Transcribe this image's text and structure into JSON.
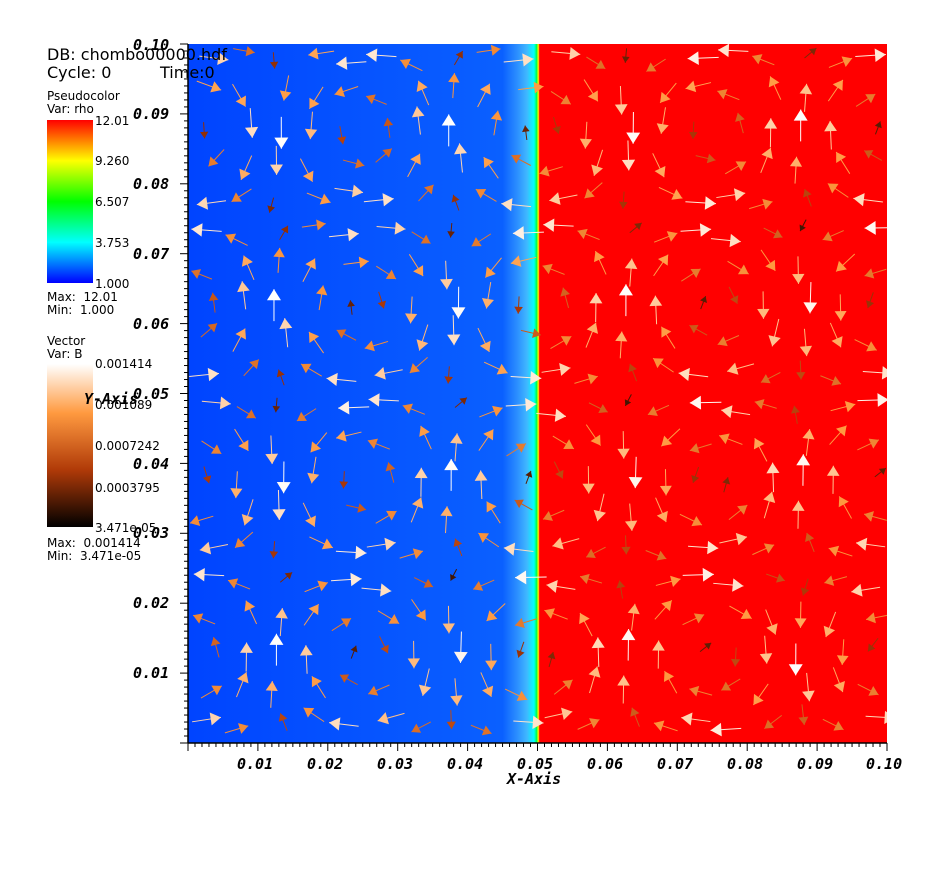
{
  "header": {
    "db_label": "DB: chombo00000.hdf",
    "cycle_label": "Cycle: 0",
    "time_label": "Time:0"
  },
  "pseudocolor_legend": {
    "title": "Pseudocolor",
    "var": "Var: rho",
    "ticks": [
      "12.01",
      "9.260",
      "6.507",
      "3.753",
      "1.000"
    ],
    "max_label": "Max:  12.01",
    "min_label": "Min:  1.000",
    "colors": [
      "#ff0000",
      "#ffff00",
      "#00ff00",
      "#00ffff",
      "#0000ff"
    ]
  },
  "vector_legend": {
    "title": "Vector",
    "var": "Var: B",
    "ticks": [
      "0.001414",
      "0.001089",
      "0.0007242",
      "0.0003795",
      "3.471e-05"
    ],
    "max_label": "Max:  0.001414",
    "min_label": "Min:  3.471e-05",
    "colors": [
      "#ffffff",
      "#ff9a40",
      "#b03a08",
      "#000000"
    ]
  },
  "chart_data": {
    "type": "heatmap",
    "title": "",
    "xlabel": "X-Axis",
    "ylabel": "Y-Axis",
    "xlim": [
      0,
      0.1
    ],
    "ylim": [
      0,
      0.1
    ],
    "x_ticks": [
      "0.01",
      "0.02",
      "0.03",
      "0.04",
      "0.05",
      "0.06",
      "0.07",
      "0.08",
      "0.09",
      "0.10"
    ],
    "y_ticks": [
      "0.01",
      "0.02",
      "0.03",
      "0.04",
      "0.05",
      "0.06",
      "0.07",
      "0.08",
      "0.09",
      "0.10"
    ],
    "scalar_field": {
      "name": "rho",
      "low_value": 1.0,
      "high_value": 12.01,
      "interface_x": 0.05,
      "low_color": "#0044ff",
      "high_color": "#ff0000"
    },
    "vector_field": {
      "name": "B",
      "max": 0.001414,
      "min": 3.471e-05,
      "vortex_centers": [
        [
          0.025,
          0.05
        ],
        [
          0.075,
          0.05
        ]
      ],
      "grid_step": 0.005
    }
  }
}
